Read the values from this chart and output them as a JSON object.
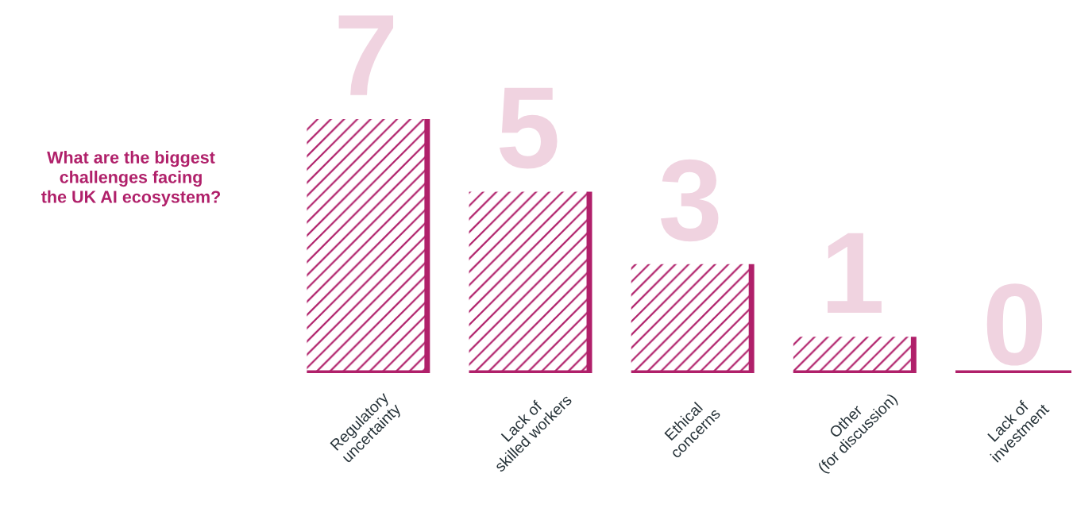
{
  "chart_data": {
    "type": "bar",
    "title": "What are the biggest\nchallenges facing\nthe UK AI ecosystem?",
    "categories": [
      "Regulatory\nuncertainty",
      "Lack of\nskilled workers",
      "Ethical\nconcerns",
      "Other\n(for discussion)",
      "Lack of\ninvestment"
    ],
    "values": [
      7,
      5,
      3,
      1,
      0
    ],
    "color": "#b0206a",
    "data_labels": true,
    "tick_labels": "x",
    "grid": false,
    "legend": false
  }
}
